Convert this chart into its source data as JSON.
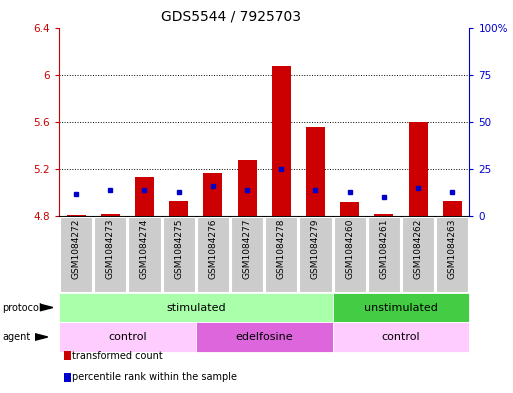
{
  "title": "GDS5544 / 7925703",
  "samples": [
    "GSM1084272",
    "GSM1084273",
    "GSM1084274",
    "GSM1084275",
    "GSM1084276",
    "GSM1084277",
    "GSM1084278",
    "GSM1084279",
    "GSM1084260",
    "GSM1084261",
    "GSM1084262",
    "GSM1084263"
  ],
  "red_values": [
    4.81,
    4.82,
    5.13,
    4.93,
    5.17,
    5.28,
    6.07,
    5.56,
    4.92,
    4.82,
    5.6,
    4.93
  ],
  "blue_values_pct": [
    12,
    14,
    14,
    13,
    16,
    14,
    25,
    14,
    13,
    10,
    15,
    13
  ],
  "ymin": 4.8,
  "ymax": 6.4,
  "yticks_left": [
    4.8,
    5.2,
    5.6,
    6.0,
    6.4
  ],
  "yticks_right": [
    0,
    25,
    50,
    75,
    100
  ],
  "ytick_labels_left": [
    "4.8",
    "5.2",
    "5.6",
    "6",
    "6.4"
  ],
  "ytick_labels_right": [
    "0",
    "25",
    "50",
    "75",
    "100%"
  ],
  "left_color": "#cc0000",
  "right_color": "#0000cc",
  "bar_color": "#cc0000",
  "blue_marker_color": "#0000cc",
  "grid_color": "black",
  "bg_color": "#ffffff",
  "protocol_labels": [
    {
      "label": "stimulated",
      "start": 0,
      "end": 8,
      "color": "#aaffaa"
    },
    {
      "label": "unstimulated",
      "start": 8,
      "end": 12,
      "color": "#44cc44"
    }
  ],
  "agent_labels": [
    {
      "label": "control",
      "start": 0,
      "end": 4,
      "color": "#ffccff"
    },
    {
      "label": "edelfosine",
      "start": 4,
      "end": 8,
      "color": "#dd66dd"
    },
    {
      "label": "control",
      "start": 8,
      "end": 12,
      "color": "#ffccff"
    }
  ],
  "legend_items": [
    {
      "label": "transformed count",
      "color": "#cc0000"
    },
    {
      "label": "percentile rank within the sample",
      "color": "#0000cc"
    }
  ],
  "tick_label_fontsize": 7.5,
  "title_fontsize": 10,
  "sample_fontsize": 6.5,
  "annotation_fontsize": 8
}
